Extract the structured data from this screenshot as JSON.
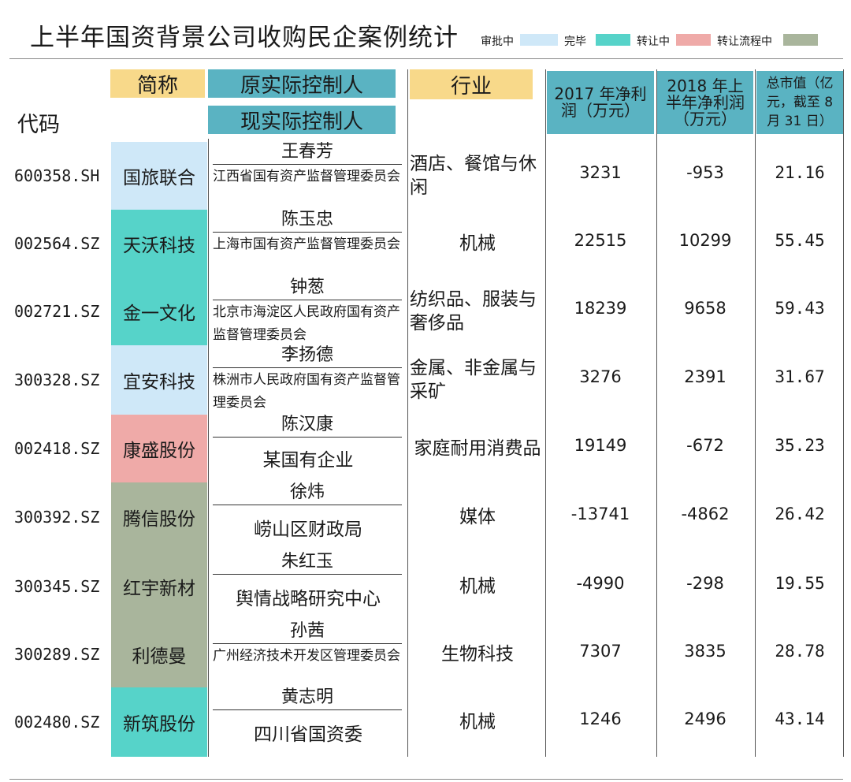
{
  "title": "上半年国资背景公司收购民企案例统计",
  "legend": [
    {
      "label": "审批中",
      "color": "#cfe8f8"
    },
    {
      "label": "完毕",
      "color": "#56d3c9"
    },
    {
      "label": "转让中",
      "color": "#efaaa8"
    },
    {
      "label": "转让流程中",
      "color": "#a9b59c"
    }
  ],
  "headers": {
    "code": "代码",
    "short_name": "简称",
    "original_controller": "原实际控制人",
    "current_controller": "现实际控制人",
    "industry": "行业",
    "profit_2017": "2017 年净利润（万元）",
    "profit_2018h1": "2018 年上半年净利润（万元）",
    "market_cap": "总市值（亿元，截至 8 月 31 日）"
  },
  "rows": [
    {
      "code": "600358.SH",
      "name": "国旅联合",
      "status_color": "#cfe8f8",
      "orig": "王春芳",
      "curr": "江西省国有资产监督管理委员会",
      "industry": "酒店、餐馆与休闲",
      "p2017": "3231",
      "p2018": "-953",
      "cap": "21.16"
    },
    {
      "code": "002564.SZ",
      "name": "天沃科技",
      "status_color": "#56d3c9",
      "orig": "陈玉忠",
      "curr": "上海市国有资产监督管理委员会",
      "industry": "机械",
      "p2017": "22515",
      "p2018": "10299",
      "cap": "55.45"
    },
    {
      "code": "002721.SZ",
      "name": "金一文化",
      "status_color": "#56d3c9",
      "orig": "钟葱",
      "curr": "北京市海淀区人民政府国有资产监督管理委员会",
      "industry": "纺织品、服装与奢侈品",
      "p2017": "18239",
      "p2018": "9658",
      "cap": "59.43"
    },
    {
      "code": "300328.SZ",
      "name": "宜安科技",
      "status_color": "#cfe8f8",
      "orig": "李扬德",
      "curr": "株洲市人民政府国有资产监督管理委员会",
      "industry": "金属、非金属与采矿",
      "p2017": "3276",
      "p2018": "2391",
      "cap": "31.67"
    },
    {
      "code": "002418.SZ",
      "name": "康盛股份",
      "status_color": "#efaaa8",
      "orig": "陈汉康",
      "curr": "某国有企业",
      "industry": "家庭耐用消费品",
      "p2017": "19149",
      "p2018": "-672",
      "cap": "35.23"
    },
    {
      "code": "300392.SZ",
      "name": "腾信股份",
      "status_color": "#a9b59c",
      "orig": "徐炜",
      "curr": "崂山区财政局",
      "industry": "媒体",
      "p2017": "-13741",
      "p2018": "-4862",
      "cap": "26.42"
    },
    {
      "code": "300345.SZ",
      "name": "红宇新材",
      "status_color": "#a9b59c",
      "orig": "朱红玉",
      "curr": "舆情战略研究中心",
      "industry": "机械",
      "p2017": "-4990",
      "p2018": "-298",
      "cap": "19.55"
    },
    {
      "code": "300289.SZ",
      "name": "利德曼",
      "status_color": "#a9b59c",
      "orig": "孙茜",
      "curr": "广州经济技术开发区管理委员会",
      "industry": "生物科技",
      "p2017": "7307",
      "p2018": "3835",
      "cap": "28.78"
    },
    {
      "code": "002480.SZ",
      "name": "新筑股份",
      "status_color": "#56d3c9",
      "orig": "黄志明",
      "curr": "四川省国资委",
      "industry": "机械",
      "p2017": "1246",
      "p2018": "2496",
      "cap": "43.14"
    }
  ]
}
